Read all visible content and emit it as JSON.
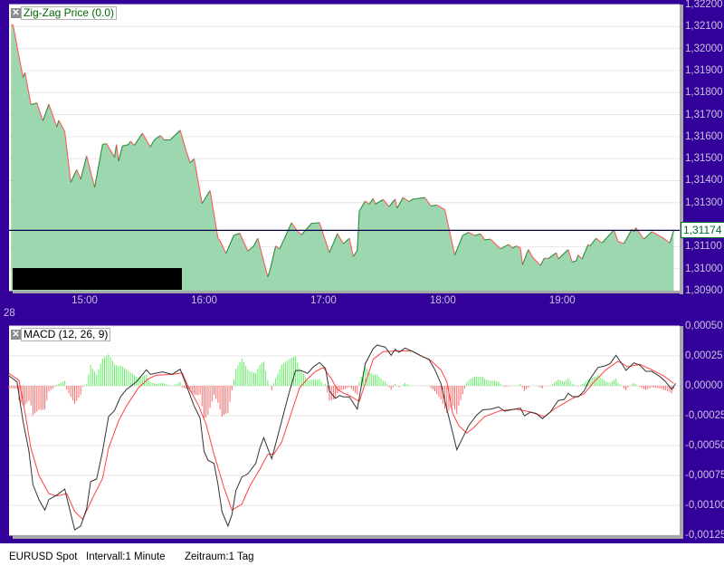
{
  "price_panel": {
    "legend_label": "Zig-Zag Price (0.0)",
    "legend_close_icon": "close-icon",
    "last_price_label": "1,31174",
    "last_price": 1.31174,
    "y_tick_labels": [
      "1,32200",
      "1,32100",
      "1,32000",
      "1,31900",
      "1,31800",
      "1,31700",
      "1,31600",
      "1,31500",
      "1,31400",
      "1,31300",
      "1,31100",
      "1,31000",
      "1,30900"
    ],
    "x_tick_labels": [
      "15:00",
      "16:00",
      "17:00",
      "18:00",
      "19:00"
    ],
    "date_label": "28",
    "colors": {
      "fill": "#9dd7b0",
      "up": "#2f8a3c",
      "down": "#ff5a5a",
      "last_line": "#000044",
      "legend_text": "#006600"
    }
  },
  "macd_panel": {
    "legend_label": "MACD (12, 26, 9)",
    "legend_close_icon": "close-icon",
    "y_tick_labels": [
      "0,00050",
      "0,00025",
      "0,00000",
      "-0,00025",
      "-0,00050",
      "-0,00075",
      "-0,00100",
      "-0,00125"
    ],
    "colors": {
      "macd": "#333333",
      "signal": "#ff4040",
      "hist_pos": "#66ee66",
      "hist_neg": "#ff6666"
    }
  },
  "status_bar": {
    "instrument": "EURUSD Spot",
    "interval": "Intervall:1 Minute",
    "range": "Zeitraum:1 Tag"
  },
  "chart_data": [
    {
      "type": "area",
      "title": "Zig-Zag Price (0.0)",
      "xlim": [
        "14:22",
        "19:59"
      ],
      "ylim": [
        1.309,
        1.322
      ],
      "grid": true,
      "x": [
        "14:23",
        "14:24",
        "14:29",
        "14:30",
        "14:33",
        "14:36",
        "14:39",
        "14:42",
        "14:46",
        "14:47",
        "14:50",
        "14:53",
        "14:56",
        "14:58",
        "15:01",
        "15:05",
        "15:09",
        "15:11",
        "15:15",
        "15:16",
        "15:17",
        "15:19",
        "15:22",
        "15:23",
        "15:25",
        "15:29",
        "15:33",
        "15:35",
        "15:38",
        "15:40",
        "15:43",
        "15:48",
        "15:51",
        "15:53",
        "15:55",
        "15:59",
        "16:03",
        "16:07",
        "16:08",
        "16:11",
        "16:15",
        "16:18",
        "16:22",
        "16:25",
        "16:27",
        "16:32",
        "16:33",
        "16:36",
        "16:38",
        "16:44",
        "16:47",
        "16:49",
        "16:54",
        "16:58",
        "17:03",
        "17:07",
        "17:10",
        "17:13",
        "17:15",
        "17:17",
        "17:18",
        "17:21",
        "17:23",
        "17:25",
        "17:26",
        "17:30",
        "17:33",
        "17:36",
        "17:37",
        "17:40",
        "17:43",
        "17:45",
        "17:51",
        "17:54",
        "17:57",
        "18:01",
        "18:06",
        "18:10",
        "18:13",
        "18:16",
        "18:19",
        "18:21",
        "18:24",
        "18:29",
        "18:33",
        "18:35",
        "18:37",
        "18:39",
        "18:40",
        "18:43",
        "18:45",
        "18:49",
        "18:51",
        "18:53",
        "18:57",
        "18:58",
        "19:03",
        "19:05",
        "19:07",
        "19:08",
        "19:10",
        "19:13",
        "19:14",
        "19:17",
        "19:20",
        "19:26",
        "19:28",
        "19:31",
        "19:35",
        "19:36",
        "19:37",
        "19:41",
        "19:45",
        "19:51",
        "19:54",
        "19:56"
      ],
      "values": [
        1.32109,
        1.32107,
        1.31869,
        1.31891,
        1.31745,
        1.31753,
        1.31671,
        1.31747,
        1.31644,
        1.31674,
        1.31623,
        1.31392,
        1.3145,
        1.31406,
        1.31512,
        1.31369,
        1.31564,
        1.31568,
        1.31506,
        1.31564,
        1.31488,
        1.31557,
        1.31564,
        1.31578,
        1.3156,
        1.31615,
        1.31553,
        1.31585,
        1.31605,
        1.31585,
        1.31585,
        1.31629,
        1.31536,
        1.31481,
        1.31499,
        1.31296,
        1.31355,
        1.31138,
        1.31128,
        1.31069,
        1.31152,
        1.31161,
        1.3108,
        1.31103,
        1.31138,
        1.30963,
        1.30989,
        1.31103,
        1.3109,
        1.31209,
        1.31169,
        1.31154,
        1.31206,
        1.31209,
        1.31073,
        1.31159,
        1.31113,
        1.31138,
        1.31055,
        1.31083,
        1.31262,
        1.31307,
        1.31293,
        1.31319,
        1.31293,
        1.31314,
        1.31282,
        1.31316,
        1.31275,
        1.31323,
        1.31305,
        1.31316,
        1.31323,
        1.31285,
        1.31289,
        1.31268,
        1.31062,
        1.31151,
        1.31165,
        1.31151,
        1.31158,
        1.31131,
        1.31134,
        1.3109,
        1.3111,
        1.31094,
        1.31103,
        1.31094,
        1.31018,
        1.31087,
        1.31053,
        1.31014,
        1.31048,
        1.31046,
        1.31072,
        1.31044,
        1.31087,
        1.3103,
        1.31035,
        1.31062,
        1.31044,
        1.3111,
        1.31103,
        1.31138,
        1.31117,
        1.31176,
        1.31124,
        1.31114,
        1.31179,
        1.31168,
        1.31186,
        1.31134,
        1.31168,
        1.31138,
        1.31117,
        1.31172
      ]
    },
    {
      "type": "line",
      "title": "MACD (12, 26, 9)",
      "xlim": [
        "14:22",
        "19:59"
      ],
      "ylim": [
        -0.00125,
        0.0005
      ],
      "grid": true,
      "series": [
        {
          "x": [
            "14:22",
            "14:26",
            "14:29",
            "14:32",
            "14:34",
            "14:37",
            "14:40",
            "14:42",
            "14:46",
            "14:49",
            "14:50",
            "14:52",
            "14:55",
            "14:58",
            "15:01",
            "15:03",
            "15:06",
            "15:09",
            "15:12",
            "15:15",
            "15:18",
            "15:21",
            "15:26",
            "15:31",
            "15:33",
            "15:39",
            "15:44",
            "15:48",
            "15:51",
            "15:55",
            "15:58",
            "16:00",
            "16:02",
            "16:05",
            "16:07",
            "16:09",
            "16:12",
            "16:14",
            "16:16",
            "16:19",
            "16:22",
            "16:26",
            "16:28",
            "16:30",
            "16:32",
            "16:34",
            "16:36",
            "16:39",
            "16:43",
            "16:46",
            "16:49",
            "16:52",
            "16:55",
            "16:58",
            "17:01",
            "17:03",
            "17:06",
            "17:08",
            "17:10",
            "17:13",
            "17:17",
            "17:21",
            "17:25",
            "17:27",
            "17:31",
            "17:34",
            "17:36",
            "17:38",
            "17:41",
            "17:45",
            "17:50",
            "17:53",
            "17:56",
            "17:59",
            "18:02",
            "18:05",
            "18:07",
            "18:10",
            "18:13",
            "18:17",
            "18:20",
            "18:24",
            "18:28",
            "18:31",
            "18:35",
            "18:39",
            "18:41",
            "18:44",
            "18:47",
            "18:50",
            "18:54",
            "18:58",
            "19:01",
            "19:03",
            "19:05",
            "19:08",
            "19:11",
            "19:14",
            "19:18",
            "19:21",
            "19:24",
            "19:27",
            "19:30",
            "19:32",
            "19:36",
            "19:39",
            "19:42",
            "19:45",
            "19:49",
            "19:52",
            "19:55",
            "19:57"
          ],
          "values": [
            8.3e-05,
            3.3e-05,
            -0.000295,
            -0.000548,
            -0.000826,
            -0.000952,
            -0.00104,
            -0.000952,
            -0.000914,
            -0.000876,
            -0.000864,
            -0.001002,
            -0.001205,
            -0.001174,
            -0.001028,
            -0.000801,
            -0.00078,
            -0.000548,
            -0.000258,
            -0.000207,
            -9.3e-05,
            -3e-05,
            3.3e-05,
            0.000134,
            9.6e-05,
            0.000116,
            9.6e-05,
            0.000139,
            8e-06,
            -0.000169,
            -0.00027,
            -0.000548,
            -0.000624,
            -0.000649,
            -0.000826,
            -0.001053,
            -0.001174,
            -0.001078,
            -0.000876,
            -0.000763,
            -0.000737,
            -0.000649,
            -0.000523,
            -0.000434,
            -0.000523,
            -0.000611,
            -0.000485,
            -0.000295,
            -4.3e-05,
            0.000129,
            0.000127,
            0.000104,
            0.000159,
            0.000195,
            0.000146,
            -4.3e-05,
            -0.000106,
            -8.1e-05,
            -9.3e-05,
            -9.3e-05,
            -0.000195,
            0.000184,
            0.000311,
            0.000341,
            0.000323,
            0.000255,
            0.000305,
            0.00028,
            0.000316,
            0.000286,
            0.000242,
            0.000222,
            0.000134,
            2e-05,
            -0.000195,
            -0.000396,
            -0.000535,
            -0.000434,
            -0.000333,
            -0.000245,
            -0.000202,
            -0.000195,
            -0.000177,
            -0.000212,
            -0.000199,
            -0.000187,
            -0.000252,
            -0.00022,
            -0.000232,
            -0.000275,
            -0.00022,
            -0.000123,
            -0.000114,
            -6.3e-05,
            -8.9e-05,
            -9.3e-05,
            -4.3e-05,
            5.8e-05,
            0.000154,
            0.000164,
            0.000184,
            0.000255,
            0.000184,
            0.000129,
            0.000192,
            0.000172,
            0.000121,
            0.000121,
            7.8e-05,
            3.3e-05,
            -3e-05,
            2e-05
          ]
        },
        {
          "x": [
            "14:22",
            "14:27",
            "14:30",
            "14:33",
            "14:37",
            "14:42",
            "14:46",
            "14:51",
            "14:55",
            "14:59",
            "15:04",
            "15:09",
            "15:12",
            "15:17",
            "15:21",
            "15:27",
            "15:32",
            "15:36",
            "15:44",
            "15:49",
            "15:52",
            "15:57",
            "16:01",
            "16:05",
            "16:10",
            "16:14",
            "16:19",
            "16:23",
            "16:28",
            "16:32",
            "16:35",
            "16:39",
            "16:43",
            "16:48",
            "16:52",
            "16:56",
            "17:00",
            "17:04",
            "17:07",
            "17:10",
            "17:13",
            "17:18",
            "17:22",
            "17:25",
            "17:30",
            "17:36",
            "17:44",
            "17:48",
            "17:54",
            "17:59",
            "18:02",
            "18:05",
            "18:08",
            "18:12",
            "18:15",
            "18:21",
            "18:29",
            "18:37",
            "18:44",
            "18:51",
            "18:56",
            "19:05",
            "19:11",
            "19:16",
            "19:22",
            "19:28",
            "19:33",
            "19:39",
            "19:45",
            "19:51",
            "19:56"
          ],
          "values": [
            0.000104,
            4.5e-05,
            -0.00022,
            -0.000523,
            -0.00075,
            -0.000902,
            -0.000922,
            -0.000902,
            -0.001053,
            -0.001116,
            -0.000939,
            -0.000775,
            -0.000523,
            -0.000295,
            -0.000169,
            -1.7e-05,
            5.8e-05,
            8.9e-05,
            9.6e-05,
            0.000108,
            -5e-06,
            -0.000157,
            -0.00032,
            -0.000573,
            -0.000851,
            -0.00104,
            -0.00099,
            -0.000838,
            -0.000699,
            -0.000573,
            -0.000573,
            -0.000472,
            -0.00027,
            -1.7e-05,
            5.8e-05,
            0.000121,
            0.000152,
            5.8e-05,
            -3e-05,
            -6.1e-05,
            -8.1e-05,
            -0.000131,
            7e-05,
            0.000222,
            0.000286,
            0.000291,
            0.000293,
            0.00026,
            0.00021,
            0.000134,
            3.3e-05,
            -0.000232,
            -0.000333,
            -0.000396,
            -0.000358,
            -0.000258,
            -0.000207,
            -0.000195,
            -0.00022,
            -0.000258,
            -0.000195,
            -0.000106,
            -6.8e-05,
            3.3e-05,
            0.000134,
            0.000205,
            0.000159,
            0.00018,
            0.000134,
            8.3e-05,
            2e-05
          ]
        }
      ]
    }
  ]
}
